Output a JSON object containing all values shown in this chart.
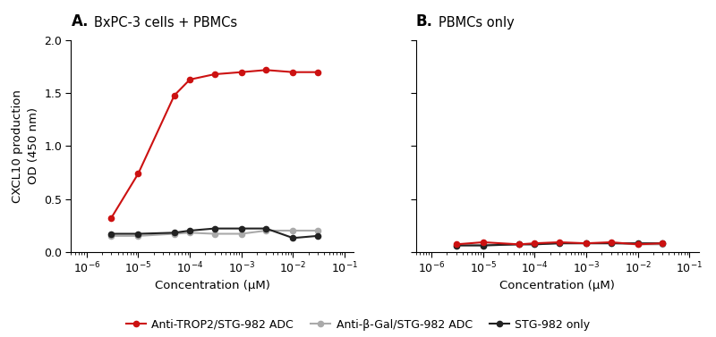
{
  "panel_A_title": "BxPC-3 cells + PBMCs",
  "panel_B_title": "PBMCs only",
  "ylabel": "CXCL10 production\nOD (450 nm)",
  "xlabel": "Concentration (μM)",
  "ylim": [
    0,
    2.0
  ],
  "yticks": [
    0.0,
    0.5,
    1.0,
    1.5,
    2.0
  ],
  "xlim_low": 5e-07,
  "xlim_high": 0.15,
  "A_red_x": [
    3e-06,
    1e-05,
    5e-05,
    0.0001,
    0.0003,
    0.001,
    0.003,
    0.01,
    0.03
  ],
  "A_red_y": [
    0.32,
    0.74,
    1.48,
    1.63,
    1.68,
    1.7,
    1.72,
    1.7,
    1.7
  ],
  "A_gray_x": [
    3e-06,
    1e-05,
    5e-05,
    0.0001,
    0.0003,
    0.001,
    0.003,
    0.01,
    0.03
  ],
  "A_gray_y": [
    0.15,
    0.15,
    0.17,
    0.18,
    0.17,
    0.17,
    0.2,
    0.2,
    0.2
  ],
  "A_black_x": [
    3e-06,
    1e-05,
    5e-05,
    0.0001,
    0.0003,
    0.001,
    0.003,
    0.01,
    0.03
  ],
  "A_black_y": [
    0.17,
    0.17,
    0.18,
    0.2,
    0.22,
    0.22,
    0.22,
    0.13,
    0.15
  ],
  "B_red_x": [
    3e-06,
    1e-05,
    5e-05,
    0.0001,
    0.0003,
    0.001,
    0.003,
    0.01,
    0.03
  ],
  "B_red_y": [
    0.07,
    0.09,
    0.07,
    0.08,
    0.09,
    0.08,
    0.09,
    0.07,
    0.08
  ],
  "B_gray_x": [
    3e-06,
    1e-05,
    5e-05,
    0.0001,
    0.0003,
    0.001,
    0.003,
    0.01,
    0.03
  ],
  "B_gray_y": [
    0.06,
    0.06,
    0.07,
    0.07,
    0.08,
    0.08,
    0.08,
    0.07,
    0.07
  ],
  "B_black_x": [
    3e-06,
    1e-05,
    5e-05,
    0.0001,
    0.0003,
    0.001,
    0.003,
    0.01,
    0.03
  ],
  "B_black_y": [
    0.06,
    0.06,
    0.07,
    0.07,
    0.08,
    0.08,
    0.08,
    0.08,
    0.08
  ],
  "color_red": "#cc1111",
  "color_gray": "#aaaaaa",
  "color_black": "#222222",
  "legend_labels": [
    "Anti-TROP2/STG-982 ADC",
    "Anti-β-Gal/STG-982 ADC",
    "STG-982 only"
  ],
  "marker_size": 5.5,
  "linewidth": 1.5,
  "font_family": "DejaVu Sans"
}
